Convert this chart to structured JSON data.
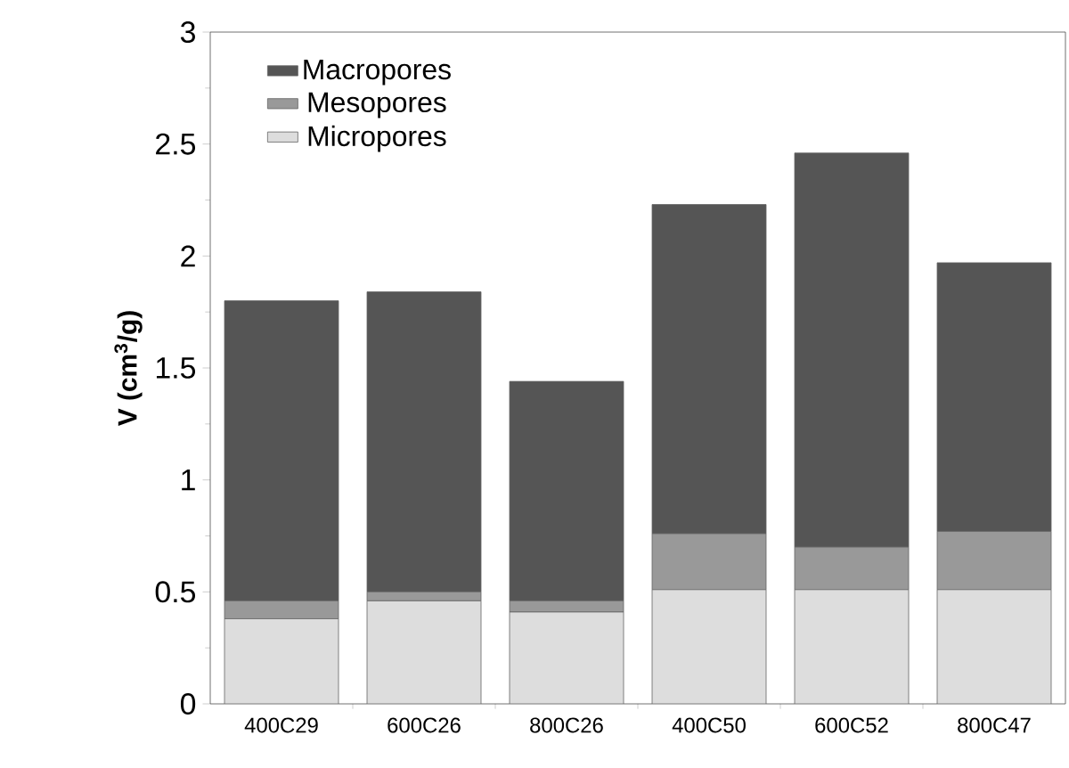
{
  "chart_data": {
    "type": "bar",
    "stacked": true,
    "ylabel": "V (cm$^{3}$/g)",
    "categories": [
      "400C29",
      "600C26",
      "800C26",
      "400C50",
      "600C52",
      "800C47"
    ],
    "series": [
      {
        "name": "Micropores",
        "color": "#dddddd",
        "values": [
          0.38,
          0.46,
          0.41,
          0.51,
          0.51,
          0.51
        ]
      },
      {
        "name": "Mesopores",
        "color": "#999999",
        "values": [
          0.08,
          0.04,
          0.05,
          0.25,
          0.19,
          0.26
        ]
      },
      {
        "name": "Macropores",
        "color": "#555555",
        "values": [
          1.34,
          1.34,
          0.98,
          1.47,
          1.76,
          1.2
        ]
      }
    ],
    "ylim": [
      0,
      3
    ],
    "yticks": [
      0,
      0.5,
      1,
      1.5,
      2,
      2.5,
      3
    ],
    "legend": "top left"
  }
}
